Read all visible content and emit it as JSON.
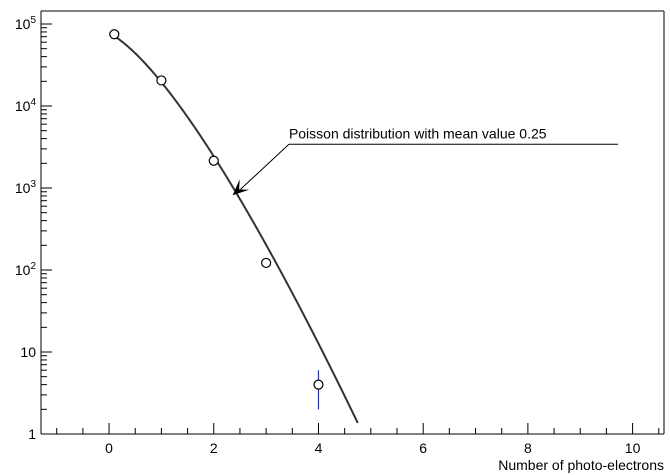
{
  "chart_data": {
    "type": "scatter",
    "title": "",
    "xlabel": "Number of photo-electrons",
    "ylabel": "",
    "xlim": [
      -1.3,
      10.6
    ],
    "ylim": [
      1,
      100000
    ],
    "yscale": "log",
    "grid": false,
    "legend": "none",
    "x_ticks": [
      0,
      2,
      4,
      6,
      8,
      10
    ],
    "y_ticks": [
      {
        "value": 1,
        "label": "1",
        "sup": ""
      },
      {
        "value": 10,
        "label": "10",
        "sup": ""
      },
      {
        "value": 100,
        "label": "10",
        "sup": "2"
      },
      {
        "value": 1000,
        "label": "10",
        "sup": "3"
      },
      {
        "value": 10000,
        "label": "10",
        "sup": "4"
      },
      {
        "value": 100000,
        "label": "10",
        "sup": "5"
      }
    ],
    "series": [
      {
        "kind": "points",
        "marker": "open-circle",
        "points": [
          {
            "x": 0.1,
            "y": 75000
          },
          {
            "x": 1.0,
            "y": 20500
          },
          {
            "x": 2.0,
            "y": 2150
          },
          {
            "x": 3.0,
            "y": 122
          },
          {
            "x": 4.0,
            "y": 4.0,
            "err_low": 2.0,
            "err_high": 6.0
          }
        ]
      },
      {
        "kind": "curve",
        "function": "poisson",
        "mean": 0.25,
        "x_range": [
          0.1,
          4.75
        ],
        "normalization": 100000
      }
    ],
    "annotations": [
      {
        "text": "Poisson distribution with mean value 0.25",
        "text_x": 2.5,
        "arrow_tip": {
          "x": 2.55,
          "y": 1600
        }
      }
    ],
    "colors": {
      "axis": "#000000",
      "curve": "#333333",
      "marker": "#000000",
      "errorbar": "#2233aa"
    }
  }
}
